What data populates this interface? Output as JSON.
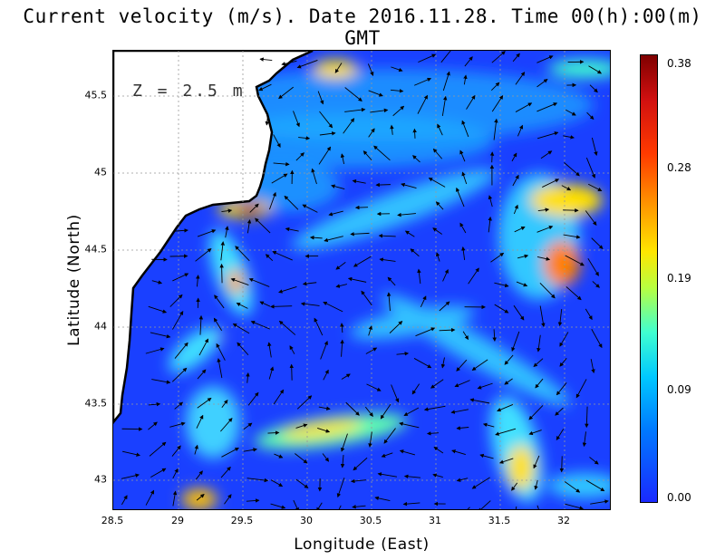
{
  "title": "Current velocity (m/s). Date 2016.11.28. Time 00(h):00(m) GMT",
  "depth_label": "Z = 2.5 m",
  "x_axis": {
    "label": "Longitude (East)",
    "ticks": [
      "28.5",
      "29",
      "29.5",
      "30",
      "30.5",
      "31",
      "31.5",
      "32"
    ]
  },
  "y_axis": {
    "label": "Latitude (North)",
    "ticks": [
      "45.5",
      "45",
      "44.5",
      "44",
      "43.5",
      "43"
    ]
  },
  "colorbar": {
    "labels": [
      "0.38",
      "0.28",
      "0.19",
      "0.09",
      "0.00"
    ]
  },
  "colors": {
    "land": "#ffffff",
    "low": "#1a2aff",
    "mid": "#00c8ff",
    "high": "#ffe600",
    "max": "#7f0000"
  }
}
